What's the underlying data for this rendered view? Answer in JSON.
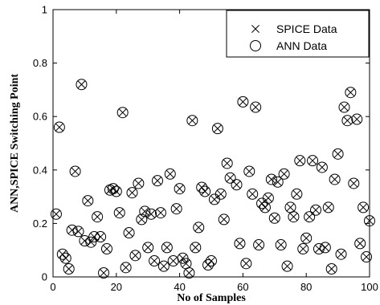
{
  "chart_data": {
    "type": "scatter",
    "xlabel": "No of Samples",
    "ylabel": "ANN,SPICE Switching Point",
    "xlim": [
      0,
      100
    ],
    "ylim": [
      0,
      1
    ],
    "xticks": [
      0,
      20,
      40,
      60,
      80,
      100
    ],
    "yticks": [
      0,
      0.2,
      0.4,
      0.6,
      0.8,
      1
    ],
    "legend_position": "top-right",
    "grid": false,
    "series": [
      {
        "name": "SPICE Data",
        "marker": "x",
        "points": [
          [
            1,
            0.235
          ],
          [
            2,
            0.56
          ],
          [
            3,
            0.085
          ],
          [
            4,
            0.07
          ],
          [
            5,
            0.03
          ],
          [
            6,
            0.175
          ],
          [
            7,
            0.395
          ],
          [
            8,
            0.17
          ],
          [
            9,
            0.72
          ],
          [
            10,
            0.135
          ],
          [
            11,
            0.285
          ],
          [
            12,
            0.13
          ],
          [
            13,
            0.15
          ],
          [
            14,
            0.225
          ],
          [
            15,
            0.15
          ],
          [
            16,
            0.015
          ],
          [
            17,
            0.105
          ],
          [
            18,
            0.325
          ],
          [
            19,
            0.33
          ],
          [
            20,
            0.32
          ],
          [
            21,
            0.24
          ],
          [
            22,
            0.615
          ],
          [
            23,
            0.035
          ],
          [
            24,
            0.165
          ],
          [
            25,
            0.315
          ],
          [
            26,
            0.08
          ],
          [
            27,
            0.35
          ],
          [
            28,
            0.215
          ],
          [
            29,
            0.245
          ],
          [
            30,
            0.11
          ],
          [
            31,
            0.235
          ],
          [
            32,
            0.06
          ],
          [
            33,
            0.36
          ],
          [
            34,
            0.24
          ],
          [
            35,
            0.04
          ],
          [
            36,
            0.11
          ],
          [
            37,
            0.385
          ],
          [
            38,
            0.06
          ],
          [
            39,
            0.255
          ],
          [
            40,
            0.33
          ],
          [
            41,
            0.07
          ],
          [
            42,
            0.05
          ],
          [
            43,
            0.015
          ],
          [
            44,
            0.585
          ],
          [
            45,
            0.11
          ],
          [
            46,
            0.185
          ],
          [
            47,
            0.335
          ],
          [
            48,
            0.32
          ],
          [
            49,
            0.045
          ],
          [
            50,
            0.06
          ],
          [
            51,
            0.29
          ],
          [
            52,
            0.555
          ],
          [
            53,
            0.31
          ],
          [
            54,
            0.215
          ],
          [
            55,
            0.425
          ],
          [
            56,
            0.37
          ],
          [
            57,
            0.865
          ],
          [
            58,
            0.345
          ],
          [
            59,
            0.125
          ],
          [
            60,
            0.655
          ],
          [
            61,
            0.05
          ],
          [
            62,
            0.395
          ],
          [
            63,
            0.31
          ],
          [
            64,
            0.635
          ],
          [
            65,
            0.12
          ],
          [
            66,
            0.275
          ],
          [
            67,
            0.26
          ],
          [
            68,
            0.295
          ],
          [
            69,
            0.365
          ],
          [
            70,
            0.22
          ],
          [
            71,
            0.355
          ],
          [
            72,
            0.12
          ],
          [
            73,
            0.385
          ],
          [
            74,
            0.04
          ],
          [
            75,
            0.26
          ],
          [
            76,
            0.225
          ],
          [
            77,
            0.31
          ],
          [
            78,
            0.435
          ],
          [
            79,
            0.105
          ],
          [
            80,
            0.145
          ],
          [
            81,
            0.225
          ],
          [
            82,
            0.435
          ],
          [
            83,
            0.25
          ],
          [
            84,
            0.105
          ],
          [
            85,
            0.41
          ],
          [
            86,
            0.11
          ],
          [
            87,
            0.26
          ],
          [
            88,
            0.03
          ],
          [
            89,
            0.365
          ],
          [
            90,
            0.46
          ],
          [
            91,
            0.085
          ],
          [
            92,
            0.635
          ],
          [
            93,
            0.585
          ],
          [
            94,
            0.69
          ],
          [
            95,
            0.35
          ],
          [
            96,
            0.59
          ],
          [
            97,
            0.125
          ],
          [
            98,
            0.26
          ],
          [
            99,
            0.075
          ],
          [
            100,
            0.21
          ]
        ]
      },
      {
        "name": "ANN Data",
        "marker": "o",
        "points": [
          [
            1,
            0.235
          ],
          [
            2,
            0.56
          ],
          [
            3,
            0.085
          ],
          [
            4,
            0.07
          ],
          [
            5,
            0.03
          ],
          [
            6,
            0.175
          ],
          [
            7,
            0.395
          ],
          [
            8,
            0.17
          ],
          [
            9,
            0.72
          ],
          [
            10,
            0.135
          ],
          [
            11,
            0.285
          ],
          [
            12,
            0.13
          ],
          [
            13,
            0.15
          ],
          [
            14,
            0.225
          ],
          [
            15,
            0.15
          ],
          [
            16,
            0.015
          ],
          [
            17,
            0.105
          ],
          [
            18,
            0.325
          ],
          [
            19,
            0.33
          ],
          [
            20,
            0.32
          ],
          [
            21,
            0.24
          ],
          [
            22,
            0.615
          ],
          [
            23,
            0.035
          ],
          [
            24,
            0.165
          ],
          [
            25,
            0.315
          ],
          [
            26,
            0.08
          ],
          [
            27,
            0.35
          ],
          [
            28,
            0.215
          ],
          [
            29,
            0.245
          ],
          [
            30,
            0.11
          ],
          [
            31,
            0.235
          ],
          [
            32,
            0.06
          ],
          [
            33,
            0.36
          ],
          [
            34,
            0.24
          ],
          [
            35,
            0.04
          ],
          [
            36,
            0.11
          ],
          [
            37,
            0.385
          ],
          [
            38,
            0.06
          ],
          [
            39,
            0.255
          ],
          [
            40,
            0.33
          ],
          [
            41,
            0.07
          ],
          [
            42,
            0.05
          ],
          [
            43,
            0.015
          ],
          [
            44,
            0.585
          ],
          [
            45,
            0.11
          ],
          [
            46,
            0.185
          ],
          [
            47,
            0.335
          ],
          [
            48,
            0.32
          ],
          [
            49,
            0.045
          ],
          [
            50,
            0.06
          ],
          [
            51,
            0.29
          ],
          [
            52,
            0.555
          ],
          [
            53,
            0.31
          ],
          [
            54,
            0.215
          ],
          [
            55,
            0.425
          ],
          [
            56,
            0.37
          ],
          [
            57,
            0.865
          ],
          [
            58,
            0.345
          ],
          [
            59,
            0.125
          ],
          [
            60,
            0.655
          ],
          [
            61,
            0.05
          ],
          [
            62,
            0.395
          ],
          [
            63,
            0.31
          ],
          [
            64,
            0.635
          ],
          [
            65,
            0.12
          ],
          [
            66,
            0.275
          ],
          [
            67,
            0.26
          ],
          [
            68,
            0.295
          ],
          [
            69,
            0.365
          ],
          [
            70,
            0.22
          ],
          [
            71,
            0.355
          ],
          [
            72,
            0.12
          ],
          [
            73,
            0.385
          ],
          [
            74,
            0.04
          ],
          [
            75,
            0.26
          ],
          [
            76,
            0.225
          ],
          [
            77,
            0.31
          ],
          [
            78,
            0.435
          ],
          [
            79,
            0.105
          ],
          [
            80,
            0.145
          ],
          [
            81,
            0.225
          ],
          [
            82,
            0.435
          ],
          [
            83,
            0.25
          ],
          [
            84,
            0.105
          ],
          [
            85,
            0.41
          ],
          [
            86,
            0.11
          ],
          [
            87,
            0.26
          ],
          [
            88,
            0.03
          ],
          [
            89,
            0.365
          ],
          [
            90,
            0.46
          ],
          [
            91,
            0.085
          ],
          [
            92,
            0.635
          ],
          [
            93,
            0.585
          ],
          [
            94,
            0.69
          ],
          [
            95,
            0.35
          ],
          [
            96,
            0.59
          ],
          [
            97,
            0.125
          ],
          [
            98,
            0.26
          ],
          [
            99,
            0.075
          ],
          [
            100,
            0.21
          ]
        ]
      }
    ]
  }
}
